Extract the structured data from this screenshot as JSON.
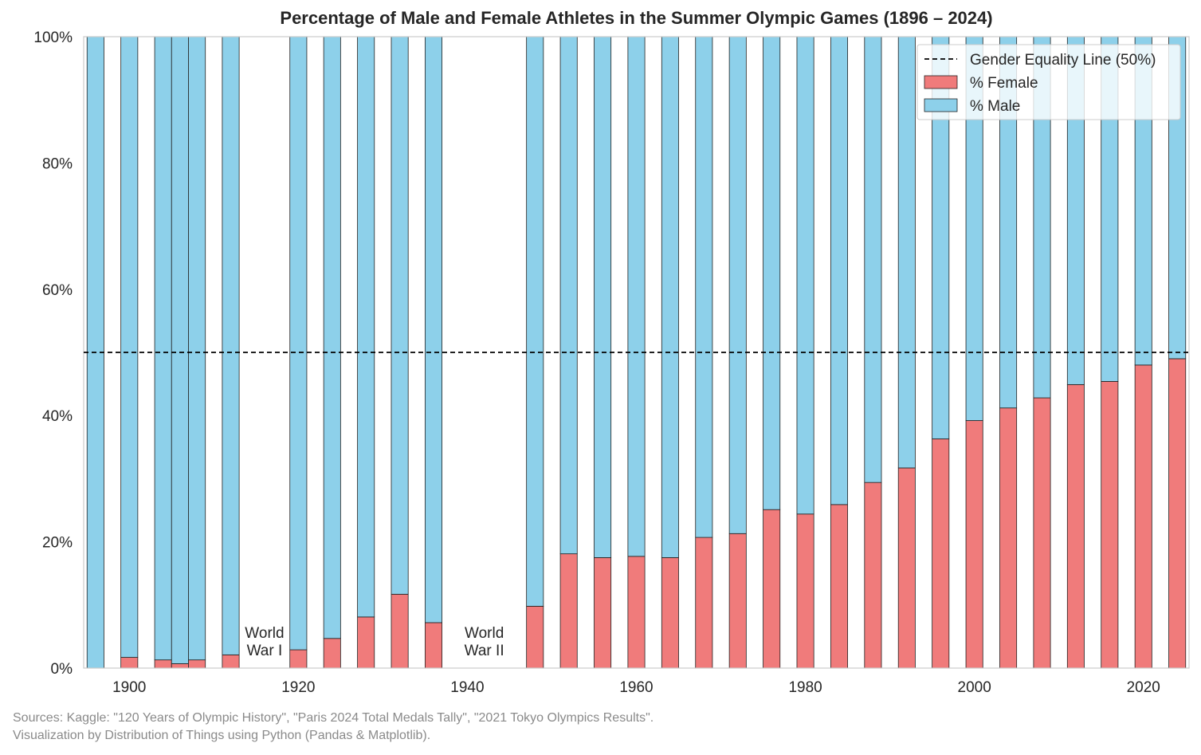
{
  "chart_data": {
    "type": "bar",
    "stacked": true,
    "title": "Percentage of Male and Female Athletes in the Summer Olympic Games (1896 – 2024)",
    "xlabel": "",
    "ylabel": "",
    "x": [
      1896,
      1900,
      1904,
      1906,
      1908,
      1912,
      1920,
      1924,
      1928,
      1932,
      1936,
      1948,
      1952,
      1956,
      1960,
      1964,
      1968,
      1972,
      1976,
      1980,
      1984,
      1988,
      1992,
      1996,
      2000,
      2004,
      2008,
      2012,
      2016,
      2020,
      2024
    ],
    "series": [
      {
        "name": "% Female",
        "color": "#f07b7b",
        "values": [
          0,
          1.7,
          1.3,
          0.7,
          1.3,
          2.1,
          2.9,
          4.7,
          8.1,
          11.7,
          7.2,
          9.8,
          18.1,
          17.5,
          17.7,
          17.5,
          20.7,
          21.3,
          25.1,
          24.4,
          25.9,
          29.4,
          31.7,
          36.3,
          39.2,
          41.2,
          42.8,
          44.9,
          45.4,
          48.0,
          49.0
        ]
      },
      {
        "name": "% Male",
        "color": "#8dd0ea",
        "values": [
          100,
          98.3,
          98.7,
          99.3,
          98.7,
          97.9,
          97.1,
          95.3,
          91.9,
          88.3,
          92.8,
          90.2,
          81.9,
          82.5,
          82.3,
          82.5,
          79.3,
          78.7,
          74.9,
          75.6,
          74.1,
          70.6,
          68.3,
          63.7,
          60.8,
          58.8,
          57.2,
          55.1,
          54.6,
          52.0,
          51.0
        ]
      }
    ],
    "reference_line": {
      "y": 50,
      "label": "Gender Equality Line (50%)",
      "style": "dashed",
      "color": "#000000"
    },
    "annotations": [
      {
        "lines": [
          "World",
          "War I"
        ],
        "x": 1916
      },
      {
        "lines": [
          "World",
          "War II"
        ],
        "x": 1942
      }
    ],
    "xlim": [
      1894.6,
      2025.4
    ],
    "ylim": [
      0,
      100
    ],
    "xticks": [
      1900,
      1920,
      1940,
      1960,
      1980,
      2000,
      2020
    ],
    "yticks": [
      0,
      20,
      40,
      60,
      80,
      100
    ],
    "ytick_labels": [
      "0%",
      "20%",
      "40%",
      "60%",
      "80%",
      "100%"
    ],
    "bar_width_years": 2,
    "grid": false,
    "legend_position": "top-right",
    "legend_order": [
      "Gender Equality Line (50%)",
      "% Female",
      "% Male"
    ]
  },
  "sources": {
    "line1": "Sources: Kaggle: \"120 Years of Olympic History\", \"Paris 2024 Total Medals Tally\", \"2021 Tokyo Olympics Results\".",
    "line2": "Visualization by Distribution of Things using Python (Pandas & Matplotlib)."
  }
}
